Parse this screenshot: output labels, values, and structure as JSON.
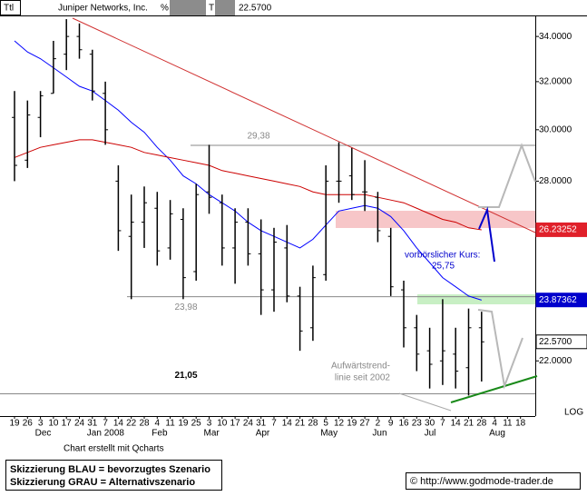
{
  "header": {
    "field": "Ttl",
    "name": "Juniper Networks, Inc.",
    "pct": "%",
    "t": "T",
    "last": "22.5700"
  },
  "chart_data": {
    "type": "ohlc",
    "log_scale": true,
    "y_scale_label": "LOG",
    "ylim": [
      20.43,
      34.93
    ],
    "yticks": [
      {
        "value": 34,
        "label": "34.0000"
      },
      {
        "value": 32,
        "label": "32.0000"
      },
      {
        "value": 30,
        "label": "30.0000"
      },
      {
        "value": 28,
        "label": "28.0000"
      },
      {
        "value": 22,
        "label": "22.0000"
      }
    ],
    "categories": [
      "19",
      "26",
      "3",
      "10",
      "17",
      "24",
      "31",
      "7",
      "14",
      "22",
      "28",
      "4",
      "11",
      "19",
      "25",
      "3",
      "10",
      "17",
      "24",
      "31",
      "7",
      "14",
      "21",
      "28",
      "5",
      "12",
      "19",
      "27",
      "2",
      "9",
      "16",
      "23",
      "30",
      "7",
      "14",
      "21",
      "28",
      "4",
      "11",
      "18"
    ],
    "months": [
      null,
      null,
      "Dec",
      null,
      null,
      null,
      "Jan 2008",
      null,
      null,
      null,
      null,
      "Feb",
      null,
      null,
      null,
      "Mar",
      null,
      null,
      null,
      "Apr",
      null,
      null,
      null,
      null,
      "May",
      null,
      null,
      null,
      "Jun",
      null,
      null,
      null,
      "Jul",
      null,
      null,
      null,
      null,
      "Aug",
      null,
      null
    ],
    "color": "#000000",
    "open": [
      30.5,
      28.8,
      30.5,
      31.5,
      33.2,
      34.0,
      33.2,
      31.5,
      28.0,
      26.0,
      26.5,
      27.0,
      25.6,
      26.6,
      24.8,
      27.6,
      27.2,
      25.6,
      26.5,
      25.4,
      24.2,
      25.6,
      24.0,
      23.0,
      24.7,
      28.0,
      28.2,
      27.6,
      27.4,
      26.0,
      24.2,
      23.0,
      22.3,
      22.0,
      22.2,
      21.8,
      23.0,
      null,
      null,
      null
    ],
    "high": [
      31.6,
      31.2,
      31.6,
      33.8,
      34.8,
      34.6,
      33.4,
      32.0,
      28.6,
      27.5,
      27.8,
      27.6,
      27.3,
      27.0,
      27.9,
      29.4,
      27.5,
      27.0,
      27.0,
      26.6,
      26.3,
      26.4,
      24.3,
      25.0,
      28.6,
      29.5,
      29.3,
      28.8,
      27.6,
      26.3,
      24.5,
      23.4,
      23.0,
      23.9,
      23.0,
      23.6,
      23.5,
      null,
      null,
      null
    ],
    "low": [
      28.0,
      28.5,
      29.7,
      31.5,
      32.5,
      33.0,
      31.2,
      29.4,
      25.5,
      23.9,
      25.6,
      25.0,
      25.2,
      23.9,
      24.5,
      26.8,
      25.0,
      24.4,
      25.0,
      23.4,
      23.5,
      23.8,
      22.3,
      22.6,
      24.5,
      27.2,
      27.3,
      26.9,
      25.8,
      24.0,
      22.4,
      21.7,
      21.2,
      21.3,
      21.2,
      21.0,
      21.4,
      null,
      null,
      null
    ],
    "close": [
      28.6,
      30.6,
      31.4,
      33.0,
      34.0,
      33.4,
      31.6,
      30.0,
      26.2,
      26.5,
      27.2,
      25.5,
      26.8,
      24.6,
      27.5,
      27.4,
      25.6,
      26.5,
      25.4,
      24.2,
      25.8,
      24.0,
      22.9,
      24.6,
      28.0,
      28.0,
      27.5,
      27.6,
      26.2,
      24.3,
      23.0,
      22.2,
      21.9,
      22.3,
      21.7,
      23.0,
      22.57,
      null,
      null,
      null
    ],
    "lines": [
      {
        "color": "#0000ff",
        "values": [
          33.8,
          33.3,
          33.0,
          32.6,
          32.2,
          31.8,
          31.6,
          31.2,
          30.8,
          30.3,
          29.9,
          29.3,
          28.8,
          28.2,
          27.9,
          27.5,
          27.2,
          26.9,
          26.5,
          26.2,
          26.0,
          25.8,
          25.6,
          25.9,
          26.4,
          26.9,
          27.0,
          27.1,
          27.0,
          26.7,
          26.2,
          25.6,
          25.1,
          24.6,
          24.3,
          24.0,
          23.87,
          null,
          null,
          null
        ]
      },
      {
        "color": "#cc0000",
        "values": [
          28.9,
          29.1,
          29.3,
          29.4,
          29.5,
          29.6,
          29.6,
          29.5,
          29.4,
          29.3,
          29.1,
          29.0,
          28.9,
          28.8,
          28.7,
          28.6,
          28.4,
          28.3,
          28.2,
          28.1,
          28.0,
          27.9,
          27.8,
          27.6,
          27.5,
          27.5,
          27.5,
          27.5,
          27.4,
          27.3,
          27.2,
          27.0,
          26.8,
          26.6,
          26.5,
          26.3,
          26.23,
          null,
          null,
          null
        ]
      }
    ],
    "levels": {
      "values": [
        29.38,
        23.98,
        21.05
      ],
      "value_labels": [
        "29,38",
        "23,98",
        "21,05"
      ]
    },
    "price_labels": [
      {
        "value": 26.23252,
        "label": "26.23252",
        "color": "#e0202a"
      },
      {
        "value": 23.87362,
        "label": "23.87362",
        "color": "#0000cc"
      },
      {
        "value": 22.57,
        "label": "22.5700",
        "color": "#ffffff"
      }
    ],
    "annotations": [
      "vorbörslicher Kurs:",
      "25,75",
      "Aufwärtstrend-",
      "linie seit 2002"
    ]
  },
  "footer": {
    "credit": "Chart erstellt mit Qcharts",
    "legend": [
      "Skizzierung BLAU = bevorzugtes Szenario",
      "Skizzierung GRAU = Alternativszenario"
    ],
    "copyright": "© http://www.godmode-trader.de"
  }
}
